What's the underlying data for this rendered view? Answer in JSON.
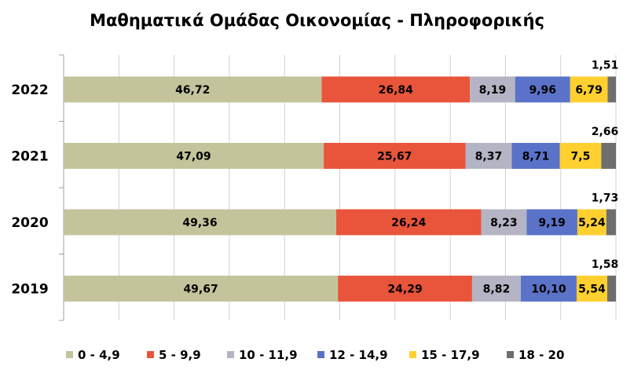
{
  "chart_data": {
    "type": "bar",
    "orientation": "horizontal",
    "stacked": true,
    "title": "Μαθηματικά Ομάδας Οικονομίας - Πληροφορικής",
    "categories": [
      "2022",
      "2021",
      "2020",
      "2019"
    ],
    "value_labels": [
      [
        "46,72",
        "26,84",
        "8,19",
        "9,96",
        "6,79",
        "1,51"
      ],
      [
        "47,09",
        "25,67",
        "8,37",
        "8,71",
        "7,5",
        "2,66"
      ],
      [
        "49,36",
        "26,24",
        "8,23",
        "9,19",
        "5,24",
        "1,73"
      ],
      [
        "49,67",
        "24,29",
        "8,82",
        "10,10",
        "5,54",
        "1,58"
      ]
    ],
    "series": [
      {
        "name": "0  -  4,9",
        "color": "#c4c49c",
        "values": [
          46.72,
          47.09,
          49.36,
          49.67
        ]
      },
      {
        "name": "5  - 9,9",
        "color": "#e8553a",
        "values": [
          26.84,
          25.67,
          26.24,
          24.29
        ]
      },
      {
        "name": "10 - 11,9",
        "color": "#b4b4c4",
        "values": [
          8.19,
          8.37,
          8.23,
          8.82
        ]
      },
      {
        "name": "12  - 14,9",
        "color": "#5a72c8",
        "values": [
          9.96,
          8.71,
          9.19,
          10.1
        ]
      },
      {
        "name": "15  - 17,9",
        "color": "#ffd030",
        "values": [
          6.79,
          7.5,
          5.24,
          5.54
        ]
      },
      {
        "name": "18  - 20",
        "color": "#6e6e6e",
        "values": [
          1.51,
          2.66,
          1.73,
          1.58
        ]
      }
    ],
    "xlim": [
      0,
      100
    ],
    "grid": true,
    "legend_position": "bottom"
  }
}
